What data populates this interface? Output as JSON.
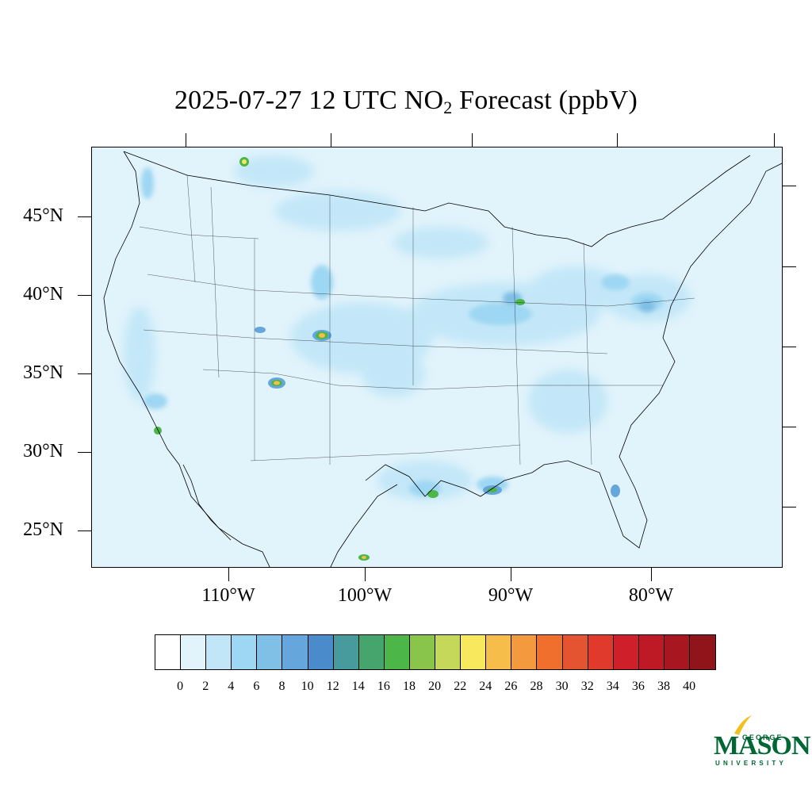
{
  "title": {
    "prefix": "2025-07-27 12 UTC NO",
    "subscript": "2",
    "suffix": " Forecast (ppbV)"
  },
  "map": {
    "background_color": "#e1f3fb",
    "lat_labels": [
      "45°N",
      "40°N",
      "35°N",
      "30°N",
      "25°N"
    ],
    "lon_labels": [
      "110°W",
      "100°W",
      "90°W",
      "80°W"
    ]
  },
  "colorbar": {
    "levels": [
      "0",
      "2",
      "4",
      "6",
      "8",
      "10",
      "12",
      "14",
      "16",
      "18",
      "20",
      "22",
      "24",
      "26",
      "28",
      "30",
      "32",
      "34",
      "36",
      "38",
      "40"
    ],
    "colors": [
      "#ffffff",
      "#e1f3fb",
      "#c0e6f8",
      "#9ed7f3",
      "#80bfe6",
      "#65a6dc",
      "#4a8ccb",
      "#479b9c",
      "#46a56c",
      "#4cb649",
      "#88c54a",
      "#c6d85a",
      "#f7e85e",
      "#f6bd4a",
      "#f49a3e",
      "#f06f2d",
      "#e55430",
      "#df3a2c",
      "#cf1f2b",
      "#bd1a25",
      "#a8171f",
      "#90151b"
    ]
  },
  "logo": {
    "top_text": "GEORGE",
    "main_text": "MASON",
    "bottom_text": "UNIVERSITY",
    "color": "#006633",
    "accent_color": "#f2c01e"
  }
}
